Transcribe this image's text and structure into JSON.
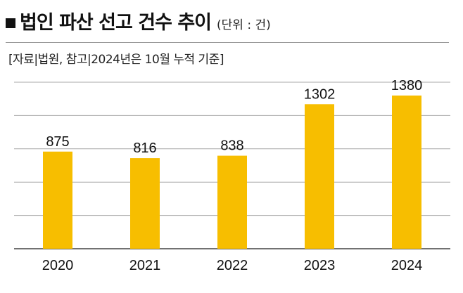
{
  "header": {
    "title": "법인 파산 선고 건수 추이",
    "unit": "(단위 : 건)",
    "source": "[자료|법원, 참고|2024년은 10월 누적 기준]"
  },
  "colors": {
    "bar": "#F7BE00",
    "grid": "#a8a8a8",
    "axis": "#444444"
  },
  "chart_data": {
    "type": "bar",
    "title": "법인 파산 선고 건수 추이",
    "xlabel": "",
    "ylabel": "",
    "categories": [
      "2020",
      "2021",
      "2022",
      "2023",
      "2024"
    ],
    "values": [
      875,
      816,
      838,
      1302,
      1380
    ],
    "ylim": [
      0,
      1500
    ],
    "grid": true,
    "legend": "none"
  }
}
